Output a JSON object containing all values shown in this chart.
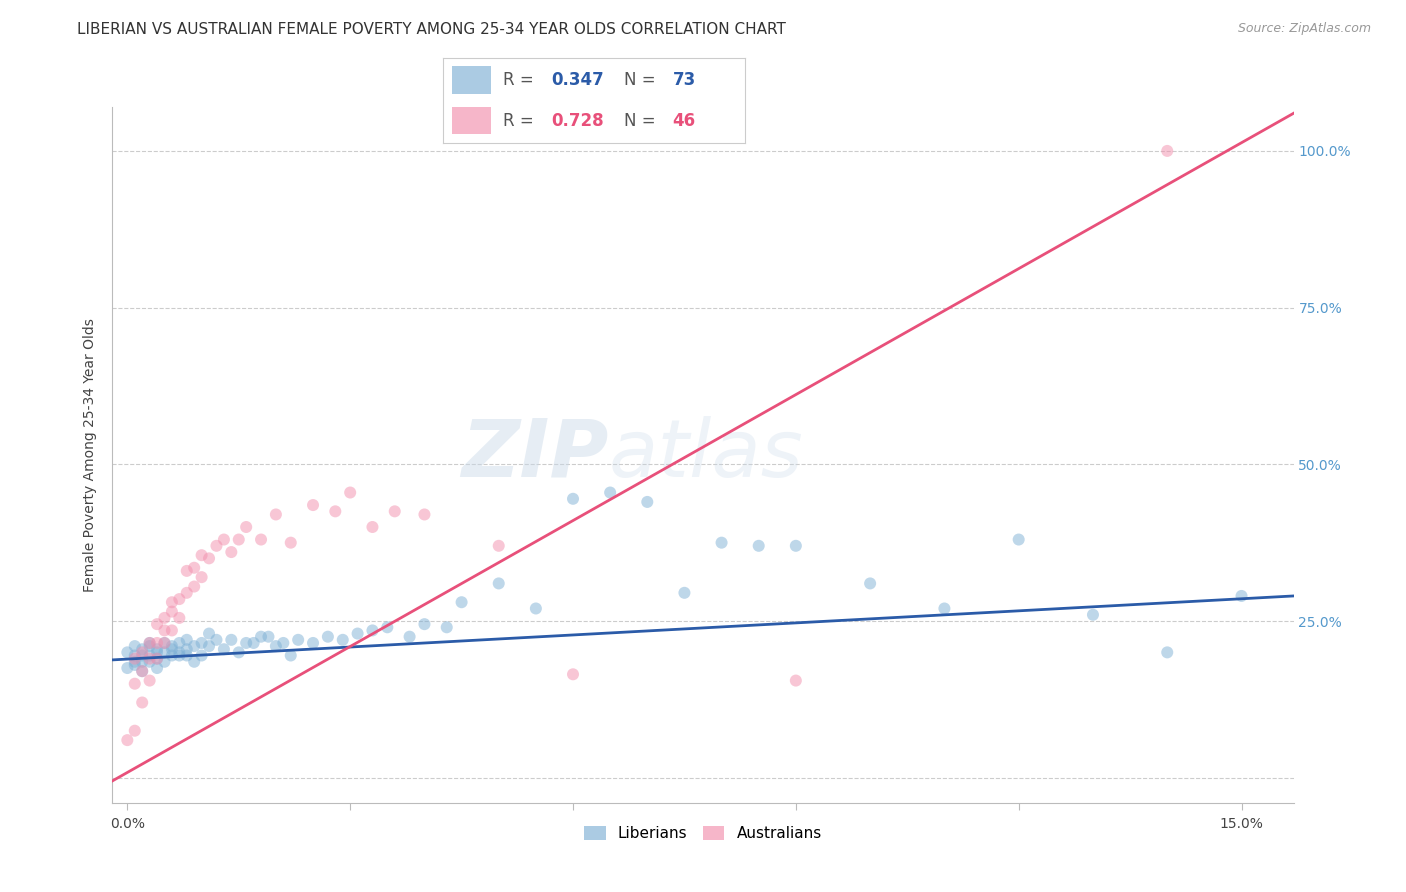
{
  "title": "LIBERIAN VS AUSTRALIAN FEMALE POVERTY AMONG 25-34 YEAR OLDS CORRELATION CHART",
  "source": "Source: ZipAtlas.com",
  "ylabel": "Female Poverty Among 25-34 Year Olds",
  "xmin": -0.002,
  "xmax": 0.157,
  "ymin": -0.04,
  "ymax": 1.07,
  "liberian_color": "#7EB0D5",
  "australian_color": "#F28FAD",
  "liberian_line_color": "#2B5BA8",
  "australian_line_color": "#E8507A",
  "right_axis_color": "#5599CC",
  "marker_size": 75,
  "marker_alpha": 0.5,
  "background_color": "#FFFFFF",
  "grid_color": "#CCCCCC",
  "title_fontsize": 11,
  "source_fontsize": 9,
  "ylabel_fontsize": 10,
  "tick_fontsize": 10,
  "watermark_zip": "ZIP",
  "watermark_atlas": "atlas",
  "lib_R": "0.347",
  "lib_N": "73",
  "aus_R": "0.728",
  "aus_N": "46",
  "lib_x": [
    0.0,
    0.0,
    0.001,
    0.001,
    0.001,
    0.001,
    0.002,
    0.002,
    0.002,
    0.002,
    0.003,
    0.003,
    0.003,
    0.003,
    0.004,
    0.004,
    0.004,
    0.004,
    0.005,
    0.005,
    0.005,
    0.006,
    0.006,
    0.006,
    0.007,
    0.007,
    0.007,
    0.008,
    0.008,
    0.008,
    0.009,
    0.009,
    0.01,
    0.01,
    0.011,
    0.011,
    0.012,
    0.013,
    0.014,
    0.015,
    0.016,
    0.017,
    0.018,
    0.019,
    0.02,
    0.021,
    0.022,
    0.023,
    0.025,
    0.027,
    0.029,
    0.031,
    0.033,
    0.035,
    0.038,
    0.04,
    0.043,
    0.045,
    0.05,
    0.055,
    0.06,
    0.065,
    0.07,
    0.075,
    0.08,
    0.085,
    0.09,
    0.1,
    0.11,
    0.12,
    0.13,
    0.14,
    0.15
  ],
  "lib_y": [
    0.2,
    0.175,
    0.195,
    0.185,
    0.21,
    0.18,
    0.195,
    0.205,
    0.185,
    0.17,
    0.215,
    0.195,
    0.21,
    0.185,
    0.2,
    0.19,
    0.205,
    0.175,
    0.2,
    0.215,
    0.185,
    0.205,
    0.195,
    0.21,
    0.2,
    0.215,
    0.195,
    0.205,
    0.22,
    0.195,
    0.21,
    0.185,
    0.215,
    0.195,
    0.21,
    0.23,
    0.22,
    0.205,
    0.22,
    0.2,
    0.215,
    0.215,
    0.225,
    0.225,
    0.21,
    0.215,
    0.195,
    0.22,
    0.215,
    0.225,
    0.22,
    0.23,
    0.235,
    0.24,
    0.225,
    0.245,
    0.24,
    0.28,
    0.31,
    0.27,
    0.445,
    0.455,
    0.44,
    0.295,
    0.375,
    0.37,
    0.37,
    0.31,
    0.27,
    0.38,
    0.26,
    0.2,
    0.29
  ],
  "aus_x": [
    0.0,
    0.001,
    0.001,
    0.001,
    0.002,
    0.002,
    0.002,
    0.003,
    0.003,
    0.003,
    0.004,
    0.004,
    0.004,
    0.005,
    0.005,
    0.005,
    0.006,
    0.006,
    0.006,
    0.007,
    0.007,
    0.008,
    0.008,
    0.009,
    0.009,
    0.01,
    0.01,
    0.011,
    0.012,
    0.013,
    0.014,
    0.015,
    0.016,
    0.018,
    0.02,
    0.022,
    0.025,
    0.028,
    0.03,
    0.033,
    0.036,
    0.04,
    0.05,
    0.06,
    0.09,
    0.14
  ],
  "aus_y": [
    0.06,
    0.075,
    0.15,
    0.19,
    0.12,
    0.17,
    0.2,
    0.155,
    0.19,
    0.215,
    0.19,
    0.215,
    0.245,
    0.215,
    0.235,
    0.255,
    0.235,
    0.265,
    0.28,
    0.255,
    0.285,
    0.295,
    0.33,
    0.305,
    0.335,
    0.32,
    0.355,
    0.35,
    0.37,
    0.38,
    0.36,
    0.38,
    0.4,
    0.38,
    0.42,
    0.375,
    0.435,
    0.425,
    0.455,
    0.4,
    0.425,
    0.42,
    0.37,
    0.165,
    0.155,
    1.0
  ],
  "lib_line_x0": -0.002,
  "lib_line_x1": 0.157,
  "lib_line_y0": 0.188,
  "lib_line_y1": 0.29,
  "aus_line_x0": -0.002,
  "aus_line_x1": 0.157,
  "aus_line_y0": -0.005,
  "aus_line_y1": 1.06
}
